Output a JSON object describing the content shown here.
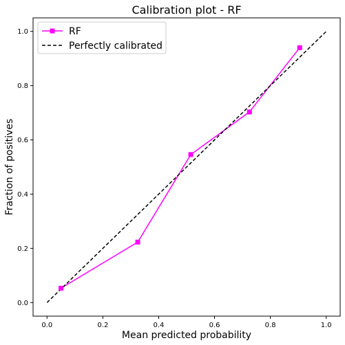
{
  "chart_data": {
    "type": "line",
    "title": "Calibration plot - RF",
    "xlabel": "Mean predicted probability",
    "ylabel": "Fraction of positives",
    "xlim": [
      -0.05,
      1.05
    ],
    "ylim": [
      -0.05,
      1.05
    ],
    "xticks": [
      "0.0",
      "0.2",
      "0.4",
      "0.6",
      "0.8",
      "1.0"
    ],
    "yticks": [
      "0.0",
      "0.2",
      "0.4",
      "0.6",
      "0.8",
      "1.0"
    ],
    "grid": false,
    "legend_position": "top-left",
    "series": [
      {
        "name": "RF",
        "color": "#ff00ff",
        "marker": "square",
        "x": [
          0.05,
          0.325,
          0.515,
          0.725,
          0.905
        ],
        "y": [
          0.053,
          0.223,
          0.546,
          0.703,
          0.94
        ]
      },
      {
        "name": "Perfectly calibrated",
        "color": "#000000",
        "style": "dashed",
        "x": [
          0.0,
          1.0
        ],
        "y": [
          0.0,
          1.0
        ]
      }
    ]
  }
}
